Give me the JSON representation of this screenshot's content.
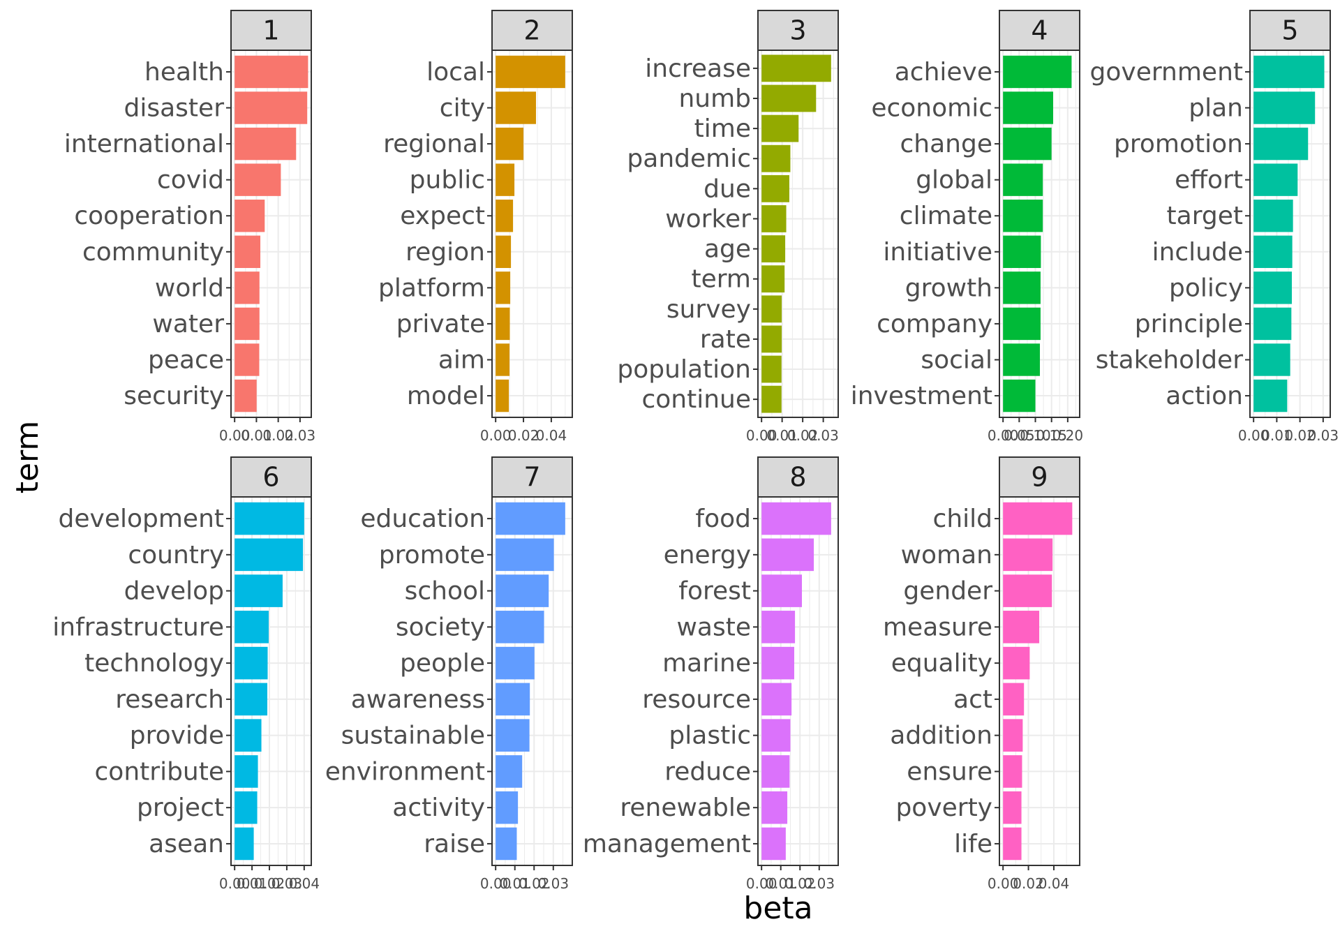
{
  "chart_data": {
    "type": "bar",
    "orientation": "horizontal",
    "facet": "topic",
    "xlabel": "beta",
    "ylabel": "term",
    "grid": true,
    "legend": "none",
    "panels": [
      {
        "label": "1",
        "color": "#F8766D",
        "xlim": [
          0,
          0.0335
        ],
        "ticks": [
          0.0,
          0.01,
          0.02,
          0.03
        ],
        "tick_labels": [
          "0.00",
          "0.01",
          "0.02",
          "0.03"
        ],
        "terms": [
          "health",
          "disaster",
          "international",
          "covid",
          "cooperation",
          "community",
          "world",
          "water",
          "peace",
          "security"
        ],
        "values": [
          0.0337,
          0.0333,
          0.0282,
          0.0212,
          0.0138,
          0.0118,
          0.0114,
          0.0114,
          0.0113,
          0.0101
        ]
      },
      {
        "label": "2",
        "color": "#D39200",
        "xlim": [
          0,
          0.0525
        ],
        "ticks": [
          0.0,
          0.02,
          0.04
        ],
        "tick_labels": [
          "0.00",
          "0.02",
          "0.04"
        ],
        "terms": [
          "local",
          "city",
          "regional",
          "public",
          "expect",
          "region",
          "platform",
          "private",
          "aim",
          "model"
        ],
        "values": [
          0.05,
          0.029,
          0.02,
          0.0135,
          0.0125,
          0.011,
          0.0105,
          0.0102,
          0.01,
          0.0095
        ]
      },
      {
        "label": "3",
        "color": "#93AA00",
        "xlim": [
          0,
          0.0355
        ],
        "ticks": [
          0.0,
          0.01,
          0.02,
          0.03
        ],
        "tick_labels": [
          "0.00",
          "0.01",
          "0.02",
          "0.03"
        ],
        "terms": [
          "increase",
          "numb",
          "time",
          "pandemic",
          "due",
          "worker",
          "age",
          "term",
          "survey",
          "rate",
          "population",
          "continue"
        ],
        "values": [
          0.0338,
          0.0265,
          0.018,
          0.014,
          0.0135,
          0.012,
          0.0115,
          0.0112,
          0.0098,
          0.0098,
          0.0097,
          0.0097
        ]
      },
      {
        "label": "4",
        "color": "#00BA38",
        "xlim": [
          0,
          0.2258
        ],
        "ticks": [
          0.0,
          0.05,
          0.1,
          0.15,
          0.2
        ],
        "tick_labels": [
          "0.00",
          "0.05",
          "0.10",
          "0.15",
          "0.20"
        ],
        "terms": [
          "achieve",
          "economic",
          "change",
          "global",
          "climate",
          "initiative",
          "growth",
          "company",
          "social",
          "investment"
        ],
        "values": [
          0.212,
          0.155,
          0.15,
          0.123,
          0.123,
          0.117,
          0.116,
          0.116,
          0.114,
          0.1
        ]
      },
      {
        "label": "5",
        "color": "#00C19F",
        "xlim": [
          0,
          0.0315
        ],
        "ticks": [
          0.0,
          0.01,
          0.02,
          0.03
        ],
        "tick_labels": [
          "0.00",
          "0.01",
          "0.02",
          "0.03"
        ],
        "terms": [
          "government",
          "plan",
          "promotion",
          "effort",
          "target",
          "include",
          "policy",
          "principle",
          "stakeholder",
          "action"
        ],
        "values": [
          0.0305,
          0.0265,
          0.0235,
          0.019,
          0.017,
          0.0167,
          0.0165,
          0.0163,
          0.0158,
          0.0145
        ]
      },
      {
        "label": "6",
        "color": "#00B9E3",
        "xlim": [
          0,
          0.042
        ],
        "ticks": [
          0.0,
          0.01,
          0.02,
          0.03,
          0.04
        ],
        "tick_labels": [
          "0.00",
          "0.01",
          "0.02",
          "0.03",
          "0.04"
        ],
        "terms": [
          "development",
          "country",
          "develop",
          "infrastructure",
          "technology",
          "research",
          "provide",
          "contribute",
          "project",
          "asean"
        ],
        "values": [
          0.04,
          0.0393,
          0.0276,
          0.0196,
          0.019,
          0.0188,
          0.0154,
          0.0134,
          0.013,
          0.011
        ]
      },
      {
        "label": "7",
        "color": "#619CFF",
        "xlim": [
          0,
          0.038
        ],
        "ticks": [
          0.0,
          0.01,
          0.02,
          0.03
        ],
        "tick_labels": [
          "0.00",
          "0.01",
          "0.02",
          "0.03"
        ],
        "terms": [
          "education",
          "promote",
          "school",
          "society",
          "people",
          "awareness",
          "sustainable",
          "environment",
          "activity",
          "raise"
        ],
        "values": [
          0.0362,
          0.0303,
          0.0276,
          0.0252,
          0.0202,
          0.0178,
          0.0176,
          0.0138,
          0.0116,
          0.011
        ]
      },
      {
        "label": "8",
        "color": "#DB72FB",
        "xlim": [
          0,
          0.038
        ],
        "ticks": [
          0.0,
          0.01,
          0.02,
          0.03
        ],
        "tick_labels": [
          "0.00",
          "0.01",
          "0.02",
          "0.03"
        ],
        "terms": [
          "food",
          "energy",
          "forest",
          "waste",
          "marine",
          "resource",
          "plastic",
          "reduce",
          "renewable",
          "management"
        ],
        "values": [
          0.0362,
          0.0272,
          0.021,
          0.0174,
          0.017,
          0.0156,
          0.015,
          0.0146,
          0.0134,
          0.0126
        ]
      },
      {
        "label": "9",
        "color": "#FF61C3",
        "xlim": [
          0,
          0.0575
        ],
        "ticks": [
          0.0,
          0.02,
          0.04
        ],
        "tick_labels": [
          "0.00",
          "0.02",
          "0.04"
        ],
        "terms": [
          "child",
          "woman",
          "gender",
          "measure",
          "equality",
          "act",
          "addition",
          "ensure",
          "poverty",
          "life"
        ],
        "values": [
          0.0545,
          0.039,
          0.0385,
          0.0285,
          0.021,
          0.0165,
          0.0155,
          0.015,
          0.0145,
          0.0145
        ]
      }
    ]
  }
}
